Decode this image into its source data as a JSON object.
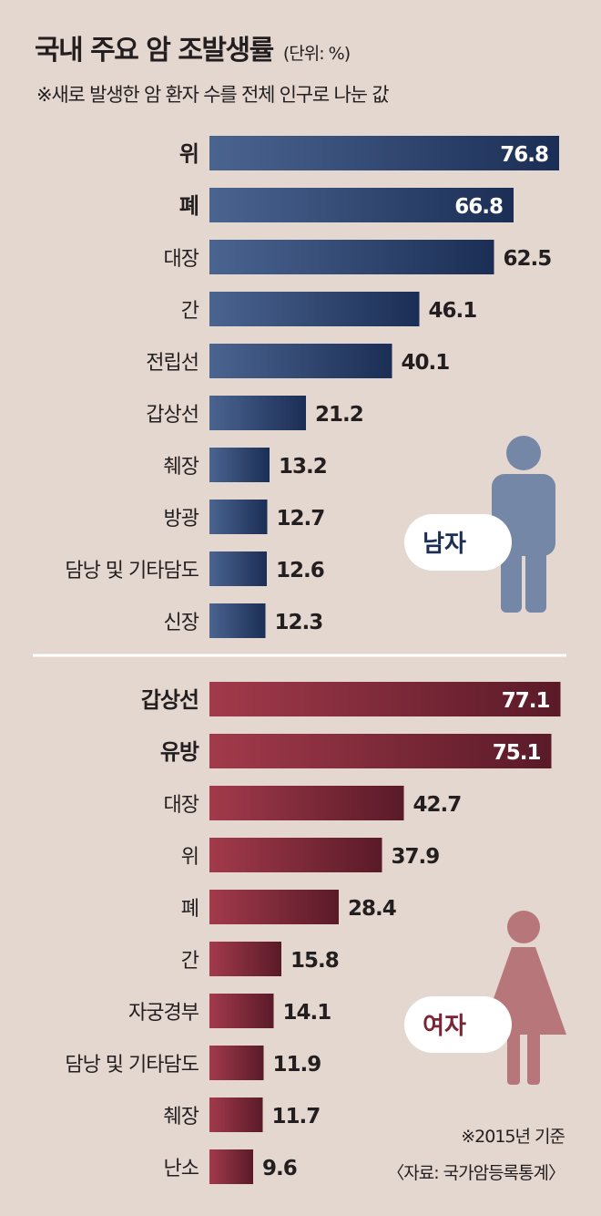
{
  "header": {
    "title": "국내 주요 암 조발생률",
    "unit": "(단위: %)",
    "subtitle": "※새로 발생한 암 환자 수를 전체 인구로 나눈 값"
  },
  "colors": {
    "background": "#e4d7cf",
    "male_bar_light": "#4a6490",
    "male_bar_dark": "#1b2e55",
    "female_bar_light": "#a23a4b",
    "female_bar_dark": "#5a1a28",
    "male_figure": "#7587a6",
    "female_figure": "#b77679",
    "divider": "#ffffff"
  },
  "chart_data": [
    {
      "type": "bar",
      "orientation": "horizontal",
      "group_label": "남자",
      "categories": [
        "위",
        "폐",
        "대장",
        "간",
        "전립선",
        "갑상선",
        "췌장",
        "방광",
        "담낭 및 기타담도",
        "신장"
      ],
      "values": [
        76.8,
        66.8,
        62.5,
        46.1,
        40.1,
        21.2,
        13.2,
        12.7,
        12.6,
        12.3
      ],
      "value_labels": [
        "76.8",
        "66.8",
        "62.5",
        "46.1",
        "40.1",
        "21.2",
        "13.2",
        "12.7",
        "12.6",
        "12.3"
      ],
      "xlim": [
        0,
        80
      ]
    },
    {
      "type": "bar",
      "orientation": "horizontal",
      "group_label": "여자",
      "categories": [
        "갑상선",
        "유방",
        "대장",
        "위",
        "폐",
        "간",
        "자궁경부",
        "담낭 및 기타담도",
        "췌장",
        "난소"
      ],
      "values": [
        77.1,
        75.1,
        42.7,
        37.9,
        28.4,
        15.8,
        14.1,
        11.9,
        11.7,
        9.6
      ],
      "value_labels": [
        "77.1",
        "75.1",
        "42.7",
        "37.9",
        "28.4",
        "15.8",
        "14.1",
        "11.9",
        "11.7",
        "9.6"
      ],
      "xlim": [
        0,
        80
      ]
    }
  ],
  "footer": {
    "base_year_note": "※2015년 기준",
    "source": "〈자료: 국가암등록통계〉"
  }
}
